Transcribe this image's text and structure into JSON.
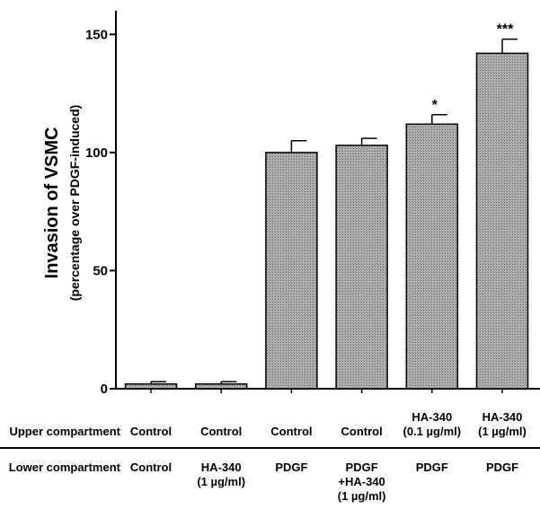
{
  "chart_data": {
    "type": "bar",
    "ylabel": "Invasion of VSMC",
    "ylabel_sub": "(percentage over PDGF-induced)",
    "ylim": [
      0,
      160
    ],
    "yticks": [
      0,
      50,
      100,
      150
    ],
    "bar_color": "#a9a9a9",
    "values": [
      2,
      2,
      100,
      103,
      112,
      142
    ],
    "errors": [
      1,
      1,
      5,
      3,
      4,
      6
    ],
    "significance": [
      "",
      "",
      "",
      "",
      "*",
      "***"
    ],
    "upper_compartment": {
      "label": "Upper compartment",
      "cells": [
        [
          "Control"
        ],
        [
          "Control"
        ],
        [
          "Control"
        ],
        [
          "Control"
        ],
        [
          "HA-340",
          "(0.1 µg/ml)"
        ],
        [
          "HA-340",
          "(1 µg/ml)"
        ]
      ]
    },
    "lower_compartment": {
      "label": "Lower compartment",
      "cells": [
        [
          "Control"
        ],
        [
          "HA-340",
          "(1 µg/ml)"
        ],
        [
          "PDGF"
        ],
        [
          "PDGF",
          "+HA-340",
          "(1 µg/ml)"
        ],
        [
          "PDGF"
        ],
        [
          "PDGF"
        ]
      ]
    }
  }
}
